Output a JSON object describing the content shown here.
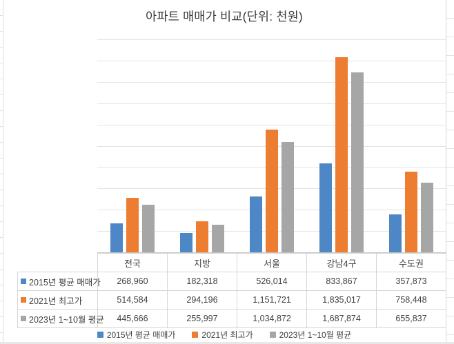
{
  "title": "아파트 매매가 비교(단위: 천원)",
  "colors": {
    "series_2015": "#4E87C6",
    "series_2021": "#ED7D31",
    "series_2023": "#A6A6A6",
    "gridline": "#E4E4E4",
    "axis_line": "#C6C6C6",
    "table_border": "#D6D6D6",
    "text": "#3F3F3F"
  },
  "chart_data": {
    "type": "bar",
    "title": "아파트 매매가 비교(단위: 천원)",
    "unit": "천원",
    "categories": [
      "전국",
      "지방",
      "서울",
      "강남4구",
      "수도권"
    ],
    "series": [
      {
        "name": "2015년 평균 매매가",
        "color": "#4E87C6",
        "values": [
          268960,
          182318,
          526014,
          833867,
          357873
        ]
      },
      {
        "name": "2021년 최고가",
        "color": "#ED7D31",
        "values": [
          514584,
          294196,
          1151721,
          1835017,
          758448
        ]
      },
      {
        "name": "2023년 1~10월 평균",
        "color": "#A6A6A6",
        "values": [
          445666,
          255997,
          1034872,
          1687874,
          655837
        ]
      }
    ],
    "ylim": [
      0,
      2000000
    ],
    "grid_step": 200000,
    "y_axis_labels_visible": false,
    "grid": "on",
    "legend_position": "bottom",
    "data_table_with_legend_keys": true
  },
  "table": {
    "header": [
      "전국",
      "지방",
      "서울",
      "강남4구",
      "수도권"
    ],
    "rows": [
      {
        "label": "2015년 평균 매매가",
        "key_color": "#4E87C6",
        "cells": [
          "268,960",
          "182,318",
          "526,014",
          "833,867",
          "357,873"
        ]
      },
      {
        "label": "2021년 최고가",
        "key_color": "#ED7D31",
        "cells": [
          "514,584",
          "294,196",
          "1,151,721",
          "1,835,017",
          "758,448"
        ]
      },
      {
        "label": "2023년 1~10월 평균",
        "key_color": "#A6A6A6",
        "cells": [
          "445,666",
          "255,997",
          "1,034,872",
          "1,687,874",
          "655,837"
        ]
      }
    ]
  },
  "legend": {
    "items": [
      {
        "label": "2015년 평균 매매가",
        "color": "#4E87C6"
      },
      {
        "label": "2021년 최고가",
        "color": "#ED7D31"
      },
      {
        "label": "2023년 1~10월 평균",
        "color": "#A6A6A6"
      }
    ]
  }
}
